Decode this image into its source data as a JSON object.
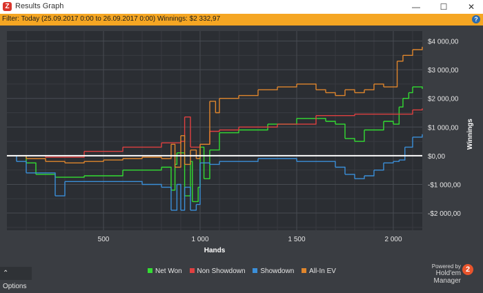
{
  "window": {
    "title": "Results Graph",
    "app_icon_glyph": "Z",
    "minimize_glyph": "—",
    "maximize_glyph": "☐",
    "close_glyph": "✕"
  },
  "filter": {
    "text": "Filter: Today (25.09.2017 0:00 to 26.09.2017 0:00)  Winnings: $2 332,97",
    "help_glyph": "?"
  },
  "footer": {
    "options_label": "⌃  Options",
    "powered_by": "Powered by",
    "brand": "Hold'em Manager",
    "brand_glyph": "2"
  },
  "colors": {
    "net_won": "#33dd33",
    "non_showdown": "#e04040",
    "showdown": "#3b8fd9",
    "all_in_ev": "#e0862c",
    "zero_line": "#ffffff",
    "plot_bg": "#2b2e33",
    "grid": "#474b52"
  },
  "chart_data": {
    "type": "line",
    "xlabel": "Hands",
    "ylabel": "Winnings",
    "xlim": [
      0,
      2150
    ],
    "ylim": [
      -2600,
      4350
    ],
    "xticks": [
      500,
      1000,
      1500,
      2000
    ],
    "xtick_labels": [
      "500",
      "1 000",
      "1 500",
      "2 000"
    ],
    "yticks": [
      -2000,
      -1000,
      0,
      1000,
      2000,
      3000,
      4000
    ],
    "ytick_labels": [
      "-$2 000,00",
      "-$1 000,00",
      "$0,00",
      "$1 000,00",
      "$2 000,00",
      "$3 000,00",
      "$4 000,00"
    ],
    "grid": true,
    "legend_position": "bottom",
    "series": [
      {
        "name": "Net Won",
        "color": "#33dd33",
        "x": [
          0,
          100,
          150,
          250,
          400,
          600,
          800,
          850,
          870,
          880,
          920,
          950,
          960,
          990,
          1000,
          1020,
          1050,
          1100,
          1200,
          1350,
          1500,
          1650,
          1700,
          1750,
          1800,
          1850,
          1950,
          2000,
          2030,
          2050,
          2080,
          2100,
          2150
        ],
        "y": [
          0,
          -250,
          -650,
          -750,
          -700,
          -500,
          -400,
          -1200,
          -300,
          100,
          -1400,
          -200,
          -1600,
          -1100,
          300,
          -800,
          200,
          800,
          900,
          1100,
          1300,
          1200,
          1100,
          600,
          500,
          900,
          1200,
          1100,
          1700,
          2000,
          2200,
          2400,
          2330
        ]
      },
      {
        "name": "Non Showdown",
        "color": "#e04040",
        "x": [
          0,
          100,
          200,
          400,
          600,
          800,
          900,
          920,
          950,
          1000,
          1050,
          1100,
          1200,
          1400,
          1600,
          1800,
          2000,
          2100,
          2150
        ],
        "y": [
          0,
          0,
          -50,
          150,
          300,
          450,
          500,
          1350,
          300,
          400,
          850,
          900,
          1000,
          1100,
          1400,
          1450,
          1450,
          1600,
          1650
        ]
      },
      {
        "name": "Showdown",
        "color": "#3b8fd9",
        "x": [
          0,
          50,
          100,
          250,
          300,
          500,
          700,
          800,
          850,
          880,
          900,
          920,
          950,
          980,
          1000,
          1050,
          1100,
          1300,
          1500,
          1700,
          1750,
          1800,
          1850,
          1900,
          1950,
          2000,
          2030,
          2060,
          2100,
          2150
        ],
        "y": [
          0,
          -200,
          -600,
          -1400,
          -900,
          -900,
          -1000,
          -1100,
          -1900,
          -1000,
          -1900,
          -1100,
          -1900,
          -1700,
          -250,
          -300,
          -200,
          -100,
          -200,
          -400,
          -650,
          -800,
          -700,
          -500,
          -250,
          -200,
          -150,
          300,
          650,
          750
        ]
      },
      {
        "name": "All-In EV",
        "color": "#e0862c",
        "x": [
          0,
          100,
          200,
          300,
          400,
          500,
          600,
          700,
          800,
          850,
          870,
          900,
          920,
          950,
          980,
          1000,
          1050,
          1080,
          1100,
          1200,
          1300,
          1400,
          1500,
          1600,
          1650,
          1700,
          1750,
          1800,
          1850,
          1900,
          1950,
          2000,
          2020,
          2050,
          2100,
          2150
        ],
        "y": [
          0,
          -100,
          -200,
          -250,
          -200,
          -150,
          -100,
          -50,
          -100,
          400,
          -400,
          700,
          -300,
          200,
          -100,
          400,
          1900,
          1500,
          2000,
          2100,
          2300,
          2400,
          2500,
          2300,
          2200,
          2100,
          2300,
          2200,
          2300,
          2500,
          2400,
          2400,
          3300,
          3500,
          3700,
          3800
        ]
      }
    ]
  }
}
